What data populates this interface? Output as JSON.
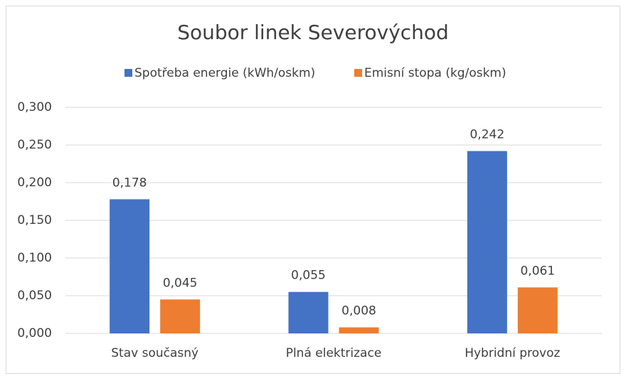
{
  "chart_data": {
    "type": "bar",
    "title": "Soubor linek Severovýchod",
    "categories": [
      "Stav současný",
      "Plná elektrizace",
      "Hybridní provoz"
    ],
    "series": [
      {
        "name": "Spotřeba energie (kWh/oskm)",
        "color": "#4472c4",
        "values": [
          0.178,
          0.055,
          0.242
        ],
        "value_labels": [
          "0,178",
          "0,055",
          "0,242"
        ]
      },
      {
        "name": "Emisní stopa (kg/oskm)",
        "color": "#ed7d31",
        "values": [
          0.045,
          0.008,
          0.061
        ],
        "value_labels": [
          "0,045",
          "0,008",
          "0,061"
        ]
      }
    ],
    "ylim": [
      0,
      0.3
    ],
    "yticks": [
      {
        "value": 0,
        "label": "0,000"
      },
      {
        "value": 0.05,
        "label": "0,050"
      },
      {
        "value": 0.1,
        "label": "0,100"
      },
      {
        "value": 0.15,
        "label": "0,150"
      },
      {
        "value": 0.2,
        "label": "0,200"
      },
      {
        "value": 0.25,
        "label": "0,250"
      },
      {
        "value": 0.3,
        "label": "0,300"
      }
    ],
    "grid": true,
    "legend": "top"
  }
}
